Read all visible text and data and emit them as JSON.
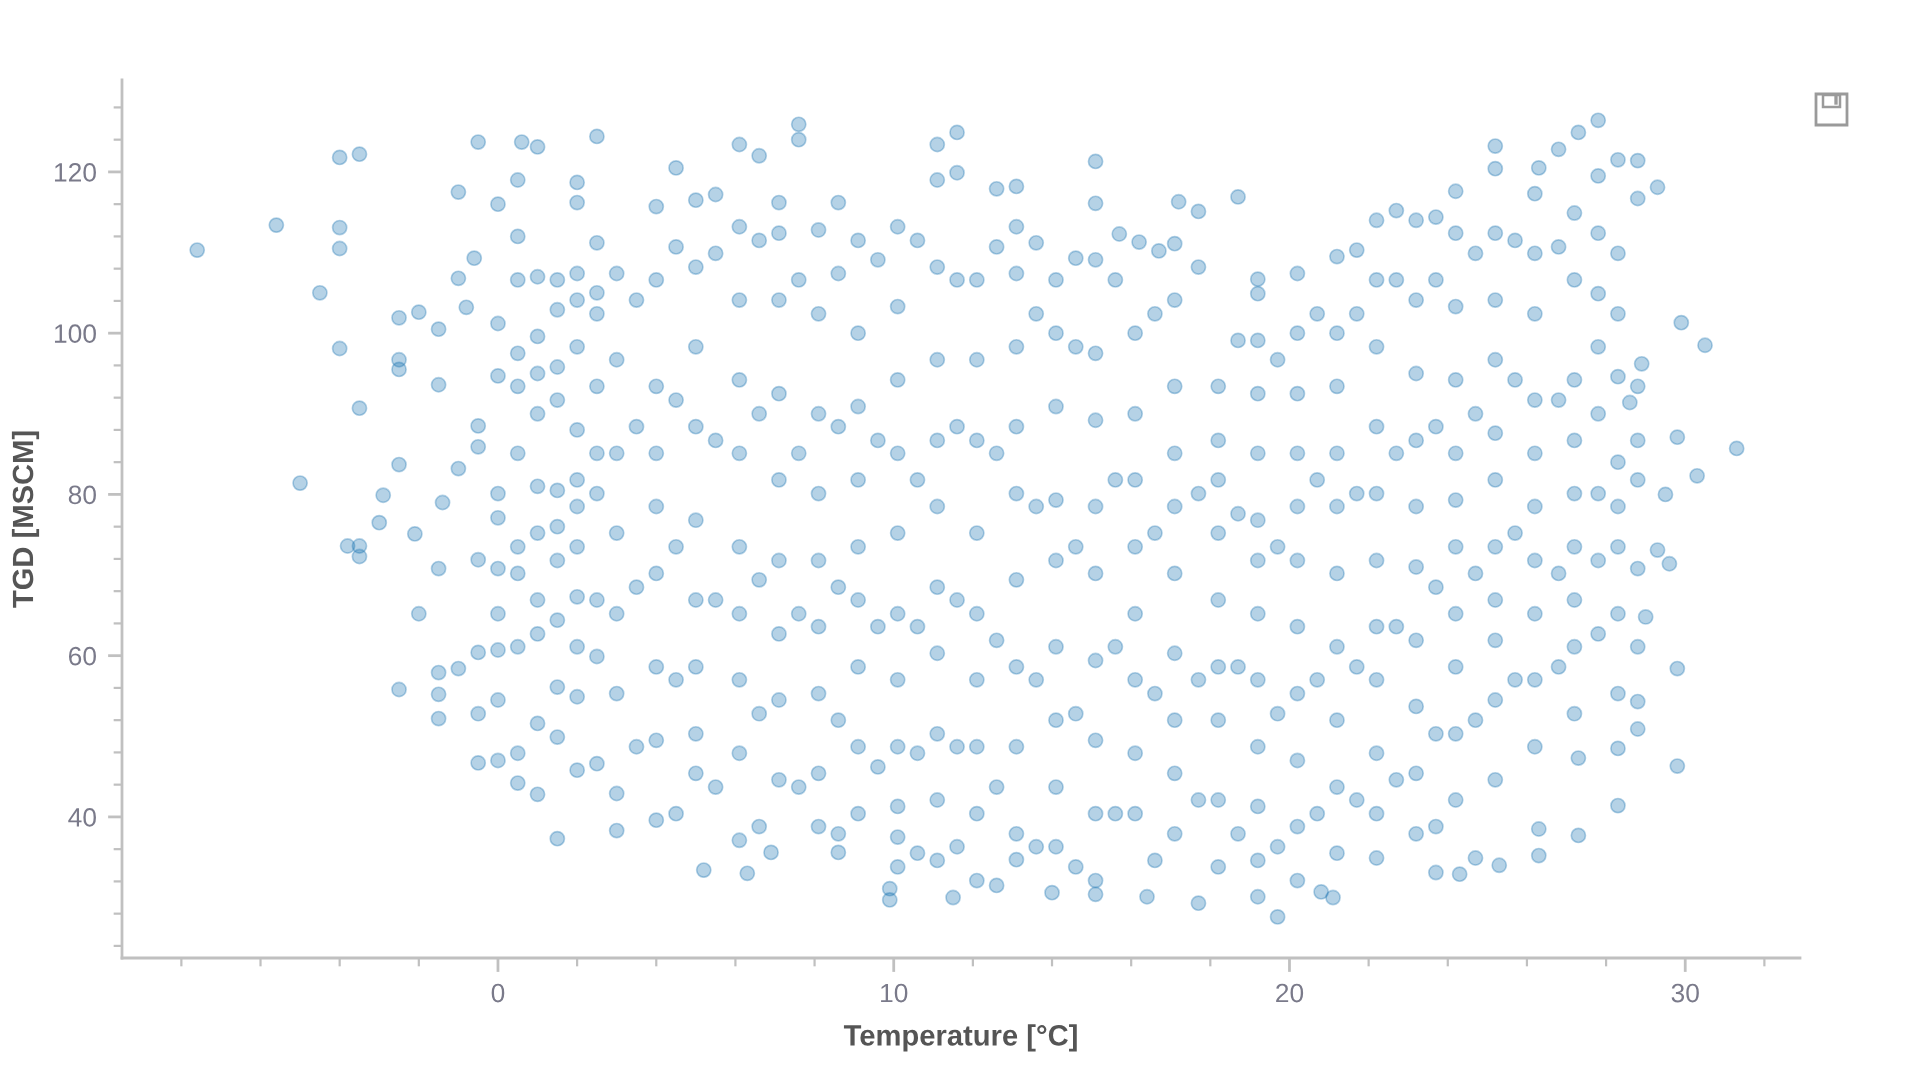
{
  "chart_data": {
    "type": "scatter",
    "xlabel": "Temperature [°C]",
    "ylabel": "TGD [MSCM]",
    "xlim": [
      -9.5,
      32.9
    ],
    "ylim": [
      22.5,
      131.4
    ],
    "xticks": [
      0,
      10,
      20,
      30
    ],
    "yticks": [
      40,
      60,
      80,
      100,
      120
    ],
    "grid": false,
    "marker": "circle",
    "color": "#1f77b4",
    "x": [
      -7.6,
      -5.6,
      -4.0,
      -3.5,
      -4.0,
      -4.0,
      -4.5,
      -4.0,
      -3.5,
      -5.0,
      -2.9,
      -3.0,
      -3.8,
      -3.5,
      -3.5,
      -2.5,
      -2.5,
      -2.0,
      -1.5,
      -2.5,
      -2.5,
      -1.5,
      -2.1,
      -1.4,
      -2.0,
      -2.5,
      -1.5,
      -1.5,
      -1.5,
      -1.0,
      -0.5,
      -0.5,
      -0.5,
      0.0,
      0.0,
      1.5,
      1.0,
      0.5,
      -0.5,
      0.6,
      1.0,
      2.5,
      -1.0,
      0.0,
      0.5,
      0.5,
      -1.0,
      -0.6,
      -0.8,
      2.0,
      2.0,
      2.5,
      -0.5,
      -0.5,
      0.0,
      -1.0,
      -0.5,
      0.0,
      -1.5,
      0.0,
      0.0,
      0.0,
      0.0,
      0.0,
      7.6,
      7.6,
      11.6,
      11.1,
      6.1,
      6.6,
      4.5,
      12.6,
      11.6,
      13.1,
      8.6,
      5.0,
      5.5,
      7.1,
      5.2,
      6.3,
      9.9,
      9.9,
      11.5,
      3.0,
      10.1,
      13.1,
      8.6,
      6.9,
      27.8,
      27.3,
      28.3,
      28.8,
      25.2,
      25.2,
      26.8,
      26.3,
      29.3,
      28.8,
      27.8,
      24.2,
      22.7,
      15.1,
      18.7,
      17.2,
      31.3,
      30.5,
      29.9,
      30.3,
      29.8,
      29.8,
      28.3,
      27.3,
      29.8,
      29.5,
      29.6,
      29.3,
      28.8,
      28.8,
      28.3,
      28.8,
      27.3,
      26.3,
      26.3,
      25.3,
      24.7,
      23.7,
      28.8,
      29.0,
      28.6,
      28.9,
      28.3,
      28.3,
      28.3,
      28.3,
      28.3,
      21.1,
      20.8,
      19.2,
      17.7,
      16.4,
      15.1,
      14.0,
      12.6,
      24.3,
      22.2,
      19.7,
      17.7,
      19.2,
      20.2,
      21.2,
      21.7,
      22.2,
      23.2,
      23.7,
      16.2,
      15.7,
      16.7,
      13.6,
      14.6,
      0.5,
      0.5,
      0.5,
      0.5,
      0.5,
      0.5,
      0.5,
      0.5,
      1.0,
      1.0,
      1.0,
      1.0,
      1.0,
      1.0,
      1.0,
      1.0,
      1.0,
      1.5,
      1.5,
      1.5,
      1.5,
      1.5,
      1.5,
      1.5,
      1.5,
      1.5,
      1.5,
      2.0,
      2.0,
      2.0,
      2.0,
      2.0,
      2.0,
      2.0,
      2.0,
      2.0,
      2.0,
      2.0,
      2.5,
      2.5,
      2.5,
      2.5,
      2.5,
      2.5,
      2.5,
      2.5,
      3.0,
      3.0,
      3.0,
      3.0,
      3.0,
      3.0,
      3.0,
      3.5,
      3.5,
      3.5,
      3.5,
      4.0,
      4.0,
      4.0,
      4.0,
      4.0,
      4.0,
      4.0,
      4.0,
      4.0,
      4.5,
      4.5,
      4.5,
      4.5,
      4.5,
      5.0,
      5.0,
      5.0,
      5.0,
      5.0,
      5.0,
      5.0,
      5.0,
      5.5,
      5.5,
      5.5,
      5.5,
      6.1,
      6.1,
      6.1,
      6.1,
      6.1,
      6.1,
      6.1,
      6.1,
      6.1,
      6.6,
      6.6,
      6.6,
      6.6,
      6.6,
      7.1,
      7.1,
      7.1,
      7.1,
      7.1,
      7.1,
      7.1,
      7.1,
      7.6,
      7.6,
      7.6,
      7.6,
      8.1,
      8.1,
      8.1,
      8.1,
      8.1,
      8.1,
      8.1,
      8.1,
      8.1,
      8.6,
      8.6,
      8.6,
      8.6,
      8.6,
      9.1,
      9.1,
      9.1,
      9.1,
      9.1,
      9.1,
      9.1,
      9.1,
      9.1,
      9.6,
      9.6,
      9.6,
      9.6,
      10.1,
      10.1,
      10.1,
      10.1,
      10.1,
      10.1,
      10.1,
      10.1,
      10.1,
      10.1,
      10.6,
      10.6,
      10.6,
      10.6,
      10.6,
      11.1,
      11.1,
      11.1,
      11.1,
      11.1,
      11.1,
      11.1,
      11.1,
      11.1,
      11.1,
      11.6,
      11.6,
      11.6,
      11.6,
      11.6,
      12.1,
      12.1,
      12.1,
      12.1,
      12.1,
      12.1,
      12.1,
      12.1,
      12.1,
      12.6,
      12.6,
      12.6,
      12.6,
      13.1,
      13.1,
      13.1,
      13.1,
      13.1,
      13.1,
      13.1,
      13.1,
      13.1,
      13.6,
      13.6,
      13.6,
      13.6,
      14.1,
      14.1,
      14.1,
      14.1,
      14.1,
      14.1,
      14.1,
      14.1,
      14.1,
      14.6,
      14.6,
      14.6,
      14.6,
      15.1,
      15.1,
      15.1,
      15.1,
      15.1,
      15.1,
      15.1,
      15.1,
      15.1,
      15.1,
      15.6,
      15.6,
      15.6,
      15.6,
      16.1,
      16.1,
      16.1,
      16.1,
      16.1,
      16.1,
      16.1,
      16.1,
      16.6,
      16.6,
      16.6,
      16.6,
      17.1,
      17.1,
      17.1,
      17.1,
      17.1,
      17.1,
      17.1,
      17.1,
      17.1,
      17.1,
      17.7,
      17.7,
      17.7,
      17.7,
      18.2,
      18.2,
      18.2,
      18.2,
      18.2,
      18.2,
      18.2,
      18.2,
      18.2,
      18.7,
      18.7,
      18.7,
      18.7,
      19.2,
      19.2,
      19.2,
      19.2,
      19.2,
      19.2,
      19.2,
      19.2,
      19.2,
      19.2,
      19.2,
      19.7,
      19.7,
      19.7,
      19.7,
      20.2,
      20.2,
      20.2,
      20.2,
      20.2,
      20.2,
      20.2,
      20.2,
      20.2,
      20.2,
      20.7,
      20.7,
      20.7,
      20.7,
      21.2,
      21.2,
      21.2,
      21.2,
      21.2,
      21.2,
      21.2,
      21.2,
      21.2,
      21.7,
      21.7,
      21.7,
      21.7,
      22.2,
      22.2,
      22.2,
      22.2,
      22.2,
      22.2,
      22.2,
      22.2,
      22.2,
      22.7,
      22.7,
      22.7,
      22.7,
      23.2,
      23.2,
      23.2,
      23.2,
      23.2,
      23.2,
      23.2,
      23.2,
      23.2,
      23.7,
      23.7,
      23.7,
      23.7,
      23.7,
      24.2,
      24.2,
      24.2,
      24.2,
      24.2,
      24.2,
      24.2,
      24.2,
      24.2,
      24.2,
      24.7,
      24.7,
      24.7,
      24.7,
      25.2,
      25.2,
      25.2,
      25.2,
      25.2,
      25.2,
      25.2,
      25.2,
      25.2,
      25.2,
      25.7,
      25.7,
      25.7,
      25.7,
      26.2,
      26.2,
      26.2,
      26.2,
      26.2,
      26.2,
      26.2,
      26.2,
      26.2,
      26.2,
      26.8,
      26.8,
      26.8,
      26.8,
      27.2,
      27.2,
      27.2,
      27.2,
      27.2,
      27.2,
      27.2,
      27.2,
      27.2,
      27.8,
      27.8,
      27.8,
      27.8,
      27.8,
      27.8,
      27.8,
      28.3,
      28.3,
      28.3,
      28.8,
      28.8,
      28.8
    ],
    "values": [
      110.3,
      113.4,
      121.8,
      122.2,
      113.1,
      110.5,
      105.0,
      98.1,
      90.7,
      81.4,
      79.9,
      76.5,
      73.6,
      72.3,
      73.6,
      83.7,
      101.9,
      102.6,
      100.5,
      96.7,
      95.5,
      93.6,
      75.1,
      79.0,
      65.2,
      55.8,
      57.9,
      55.2,
      52.2,
      58.4,
      60.4,
      52.8,
      46.7,
      47.0,
      54.5,
      37.3,
      42.8,
      44.2,
      123.7,
      123.7,
      123.1,
      124.4,
      117.5,
      116.0,
      119.0,
      112.0,
      106.8,
      109.3,
      103.2,
      118.7,
      116.2,
      111.2,
      88.5,
      85.9,
      77.1,
      83.2,
      71.9,
      70.8,
      70.8,
      101.2,
      94.7,
      80.1,
      65.2,
      60.7,
      125.9,
      124.0,
      124.9,
      123.4,
      123.4,
      122.0,
      120.5,
      117.9,
      119.9,
      118.2,
      116.2,
      116.5,
      117.2,
      116.2,
      33.4,
      33.0,
      29.7,
      31.1,
      30.0,
      38.3,
      37.5,
      34.7,
      35.6,
      35.6,
      126.4,
      124.9,
      121.5,
      121.4,
      123.2,
      120.4,
      122.8,
      120.5,
      118.1,
      116.7,
      119.5,
      117.6,
      115.2,
      121.3,
      116.9,
      116.3,
      85.7,
      98.5,
      101.3,
      82.3,
      58.4,
      46.3,
      41.4,
      37.7,
      87.1,
      80.0,
      71.4,
      73.1,
      70.8,
      54.3,
      48.5,
      50.9,
      47.3,
      35.2,
      38.5,
      34.0,
      34.9,
      33.1,
      81.8,
      64.8,
      91.4,
      96.2,
      109.9,
      102.4,
      94.6,
      84.0,
      78.5,
      30.0,
      30.7,
      30.1,
      29.3,
      30.1,
      30.4,
      30.6,
      31.5,
      32.9,
      34.9,
      27.6,
      115.1,
      106.7,
      107.4,
      109.5,
      110.3,
      114.0,
      114.0,
      114.4,
      111.3,
      112.3,
      110.2,
      111.2,
      109.3,
      106.6,
      97.5,
      93.4,
      85.1,
      73.5,
      70.2,
      61.1,
      47.9,
      107.0,
      99.6,
      95.0,
      90.0,
      81.0,
      75.2,
      66.9,
      62.7,
      51.6,
      106.6,
      102.9,
      95.8,
      91.7,
      80.5,
      76.0,
      71.8,
      64.4,
      56.1,
      49.9,
      107.4,
      104.1,
      98.3,
      88.0,
      81.8,
      78.5,
      73.5,
      67.3,
      61.1,
      54.9,
      45.8,
      105.0,
      102.4,
      93.4,
      85.1,
      80.1,
      66.9,
      59.9,
      46.6,
      107.4,
      96.7,
      85.1,
      75.2,
      65.2,
      55.3,
      42.9,
      104.1,
      88.4,
      68.5,
      48.7,
      115.7,
      106.6,
      93.4,
      85.1,
      78.5,
      70.2,
      58.6,
      49.5,
      39.6,
      110.7,
      91.7,
      73.5,
      57.0,
      40.4,
      108.2,
      98.3,
      88.4,
      76.8,
      66.9,
      58.6,
      50.3,
      45.4,
      109.9,
      86.7,
      66.9,
      43.7,
      113.2,
      104.1,
      94.2,
      85.1,
      73.5,
      65.2,
      57.0,
      47.9,
      37.1,
      111.5,
      90.0,
      69.4,
      52.8,
      38.8,
      112.4,
      104.1,
      92.5,
      81.8,
      71.8,
      62.7,
      54.5,
      44.6,
      106.6,
      85.1,
      65.2,
      43.7,
      112.8,
      102.4,
      90.0,
      80.1,
      71.8,
      63.6,
      55.3,
      45.4,
      38.8,
      107.4,
      88.4,
      68.5,
      52.0,
      37.9,
      111.5,
      100.0,
      90.9,
      81.8,
      73.5,
      66.9,
      58.6,
      48.7,
      40.4,
      109.1,
      86.7,
      63.6,
      46.2,
      113.2,
      103.3,
      94.2,
      85.1,
      75.2,
      65.2,
      57.0,
      48.7,
      41.3,
      33.8,
      111.5,
      81.8,
      63.6,
      47.9,
      35.5,
      119.0,
      108.2,
      96.7,
      86.7,
      78.5,
      68.5,
      60.3,
      50.3,
      42.1,
      34.6,
      106.6,
      88.4,
      66.9,
      48.7,
      36.3,
      106.6,
      96.7,
      86.7,
      75.2,
      65.2,
      57.0,
      48.7,
      40.4,
      32.1,
      110.7,
      85.1,
      61.9,
      43.7,
      113.2,
      107.4,
      98.3,
      88.4,
      80.1,
      69.4,
      58.6,
      48.7,
      37.9,
      102.4,
      78.5,
      57.0,
      36.3,
      106.6,
      100.0,
      90.9,
      79.3,
      71.8,
      61.1,
      52.0,
      43.7,
      36.3,
      98.3,
      73.5,
      52.8,
      33.8,
      116.1,
      109.1,
      97.5,
      89.2,
      78.5,
      70.2,
      59.4,
      49.5,
      40.4,
      32.1,
      106.6,
      81.8,
      61.1,
      40.4,
      100.0,
      90.0,
      81.8,
      73.5,
      65.2,
      57.0,
      47.9,
      40.4,
      102.4,
      75.2,
      55.3,
      34.6,
      111.1,
      104.1,
      93.4,
      85.1,
      78.5,
      70.2,
      60.3,
      52.0,
      45.4,
      37.9,
      108.2,
      80.1,
      57.0,
      42.1,
      93.4,
      86.7,
      81.8,
      75.2,
      66.9,
      58.6,
      52.0,
      42.1,
      33.8,
      99.1,
      77.6,
      58.6,
      37.9,
      104.9,
      99.1,
      92.5,
      85.1,
      76.8,
      71.8,
      65.2,
      57.0,
      48.7,
      41.3,
      34.6,
      96.7,
      73.5,
      52.8,
      36.3,
      100.0,
      92.5,
      85.1,
      78.5,
      71.8,
      63.6,
      55.3,
      47.0,
      38.8,
      32.1,
      102.4,
      81.8,
      57.0,
      40.4,
      100.0,
      93.4,
      85.1,
      78.5,
      70.2,
      61.1,
      52.0,
      43.7,
      35.5,
      102.4,
      80.1,
      58.6,
      42.1,
      106.6,
      98.3,
      88.4,
      80.1,
      71.8,
      63.6,
      57.0,
      47.9,
      40.4,
      106.6,
      85.1,
      63.6,
      44.6,
      104.1,
      95.0,
      86.7,
      78.5,
      71.0,
      61.9,
      53.7,
      45.4,
      37.9,
      106.6,
      88.4,
      68.5,
      50.3,
      38.8,
      112.4,
      103.3,
      94.2,
      85.1,
      79.3,
      73.5,
      65.2,
      58.6,
      50.3,
      42.1,
      109.9,
      90.0,
      70.2,
      52.0,
      112.4,
      104.1,
      96.7,
      87.6,
      81.8,
      73.5,
      66.9,
      61.9,
      54.5,
      44.6,
      111.5,
      94.2,
      75.2,
      57.0,
      117.3,
      109.9,
      102.4,
      91.7,
      85.1,
      78.5,
      71.8,
      65.2,
      57.0,
      48.7,
      110.7,
      91.7,
      70.2,
      58.6,
      114.9,
      106.6,
      94.2,
      86.7,
      80.1,
      73.5,
      66.9,
      61.1,
      52.8,
      112.4,
      104.9,
      98.3,
      90.0,
      80.1,
      71.8,
      62.7,
      73.5,
      65.2,
      55.3,
      93.4,
      86.7,
      61.1
    ]
  }
}
